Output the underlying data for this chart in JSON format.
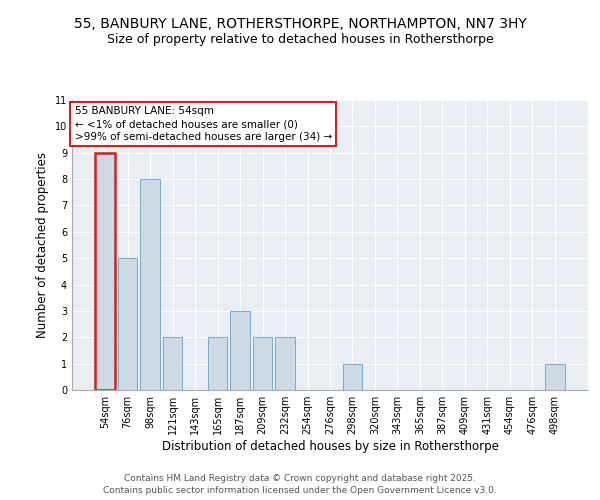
{
  "title": "55, BANBURY LANE, ROTHERSTHORPE, NORTHAMPTON, NN7 3HY",
  "subtitle": "Size of property relative to detached houses in Rothersthorpe",
  "xlabel": "Distribution of detached houses by size in Rothersthorpe",
  "ylabel": "Number of detached properties",
  "categories": [
    "54sqm",
    "76sqm",
    "98sqm",
    "121sqm",
    "143sqm",
    "165sqm",
    "187sqm",
    "209sqm",
    "232sqm",
    "254sqm",
    "276sqm",
    "298sqm",
    "320sqm",
    "343sqm",
    "365sqm",
    "387sqm",
    "409sqm",
    "431sqm",
    "454sqm",
    "476sqm",
    "498sqm"
  ],
  "values": [
    9,
    5,
    8,
    2,
    0,
    2,
    3,
    2,
    2,
    0,
    0,
    1,
    0,
    0,
    0,
    0,
    0,
    0,
    0,
    0,
    1
  ],
  "bar_color": "#cdd9e5",
  "bar_edge_color": "#7aaace",
  "highlight_index": 0,
  "highlight_bar_edge_color": "#cc2222",
  "annotation_text": "55 BANBURY LANE: 54sqm\n← <1% of detached houses are smaller (0)\n>99% of semi-detached houses are larger (34) →",
  "annotation_box_edge_color": "#cc2222",
  "ylim": [
    0,
    11
  ],
  "yticks": [
    0,
    1,
    2,
    3,
    4,
    5,
    6,
    7,
    8,
    9,
    10,
    11
  ],
  "background_color": "#e8eef4",
  "grid_color": "#ffffff",
  "footer_text": "Contains HM Land Registry data © Crown copyright and database right 2025.\nContains public sector information licensed under the Open Government Licence v3.0.",
  "title_fontsize": 10,
  "subtitle_fontsize": 9,
  "axis_label_fontsize": 8.5,
  "tick_fontsize": 7,
  "annotation_fontsize": 7.5,
  "footer_fontsize": 6.5
}
